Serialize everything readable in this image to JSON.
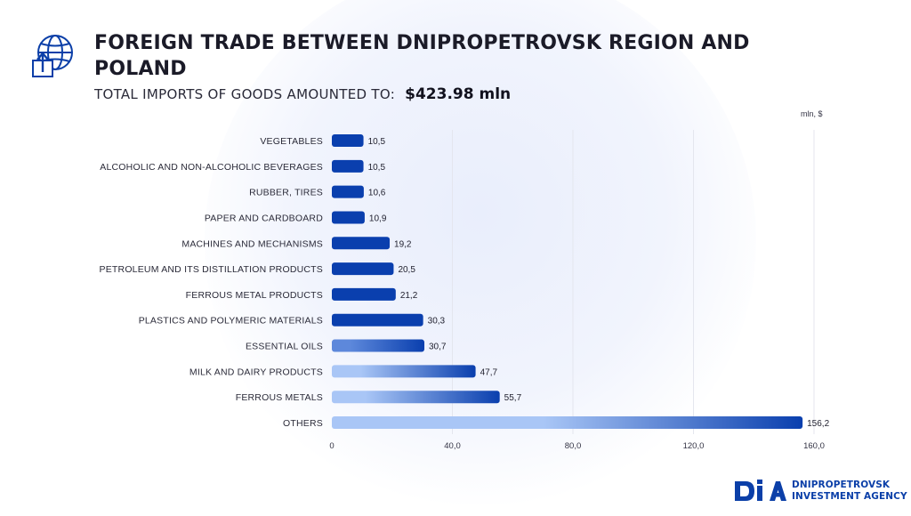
{
  "header": {
    "title": "FOREIGN TRADE BETWEEN DNIPROPETROVSK REGION AND POLAND",
    "subtitle_label": "TOTAL IMPORTS OF GOODS AMOUNTED TO:",
    "subtitle_value": "$423.98 mln",
    "icon": "globe-box-arrow-icon"
  },
  "chart_data": {
    "type": "bar",
    "orientation": "horizontal",
    "unit_label": "mln, $",
    "categories": [
      "VEGETABLES",
      "ALCOHOLIC AND NON-ALCOHOLIC BEVERAGES",
      "RUBBER, TIRES",
      "PAPER AND CARDBOARD",
      "MACHINES AND MECHANISMS",
      "PETROLEUM AND ITS DISTILLATION PRODUCTS",
      "FERROUS METAL PRODUCTS",
      "PLASTICS AND POLYMERIC MATERIALS",
      "ESSENTIAL OILS",
      "MILK AND DAIRY PRODUCTS",
      "FERROUS METALS",
      "OTHERS"
    ],
    "values": [
      10.5,
      10.5,
      10.6,
      10.9,
      19.2,
      20.5,
      21.2,
      30.3,
      30.7,
      47.7,
      55.7,
      156.2
    ],
    "value_labels": [
      "10,5",
      "10,5",
      "10,6",
      "10,9",
      "19,2",
      "20,5",
      "21,2",
      "30,3",
      "30,7",
      "47,7",
      "55,7",
      "156,2"
    ],
    "xlim": [
      0,
      160
    ],
    "xticks": [
      0,
      40,
      80,
      120,
      160
    ],
    "xtick_labels": [
      "0",
      "40,0",
      "80,0",
      "120,0",
      "160,0"
    ],
    "grid": true,
    "colors": {
      "bar_dark": "#0a3fae",
      "bar_light": "#a9c6f6",
      "grid": "#e4e6ee"
    }
  },
  "logo": {
    "mark": "DIA",
    "line1": "DNIPROPETROVSK",
    "line2": "INVESTMENT AGENCY",
    "color": "#0b3fa8"
  }
}
